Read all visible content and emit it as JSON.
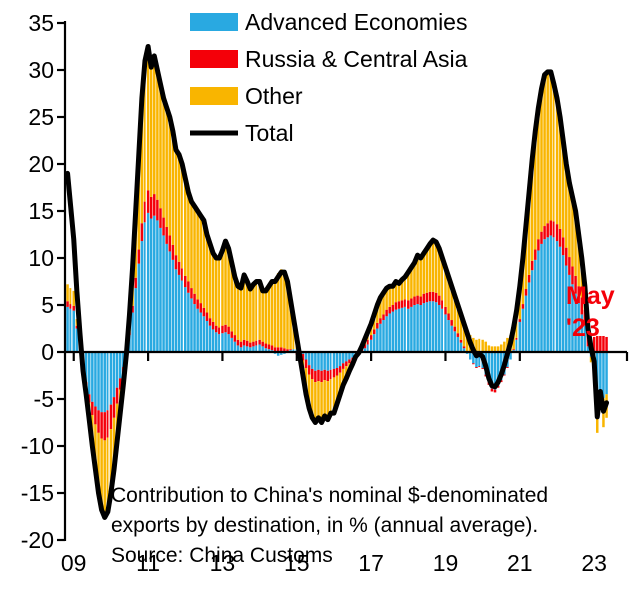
{
  "legend": {
    "position": "top-center",
    "items": [
      "Advanced Economies",
      "Russia & Central Asia",
      "Other",
      "Total"
    ]
  },
  "annotation": {
    "lines": [
      "Contribution to China's nominal $-denominated",
      "exports by destination, in % (annual average).",
      "Source: China Customs"
    ]
  },
  "end_label": {
    "line1": "May",
    "line2": "'23",
    "color": "#f40009"
  },
  "chart_data": {
    "type": "bar",
    "subtype": "stacked-monthly-bars-with-total-line",
    "x_start": "2008-11",
    "x_end": "2023-05",
    "frequency": "monthly",
    "x_tick_labels": [
      "09",
      "11",
      "13",
      "15",
      "17",
      "19",
      "21",
      "23"
    ],
    "x_tick_month_indices": [
      2,
      26,
      50,
      74,
      98,
      122,
      146,
      170
    ],
    "y_ticks": [
      35,
      30,
      25,
      20,
      15,
      10,
      5,
      0,
      -5,
      -10,
      -15,
      -20
    ],
    "ylim": [
      -20,
      35
    ],
    "grid": "none",
    "series": [
      {
        "name": "Advanced Economies",
        "type": "bar",
        "color": "#29a9e1",
        "values": [
          4.8,
          4.6,
          4.4,
          2.5,
          0.8,
          -1.5,
          -3.2,
          -4.5,
          -5.3,
          -5.8,
          -6.2,
          -6.4,
          -6.4,
          -6.2,
          -5.6,
          -4.8,
          -3.8,
          -2.8,
          -1.6,
          -0.3,
          1.8,
          4.2,
          6.8,
          9.4,
          11.8,
          13.8,
          14.8,
          14.2,
          14.5,
          14.0,
          13.2,
          12.4,
          11.5,
          10.7,
          9.8,
          8.8,
          8.2,
          7.6,
          6.9,
          6.3,
          5.7,
          5.1,
          4.6,
          4.2,
          3.8,
          3.3,
          2.8,
          2.4,
          2.1,
          1.9,
          2.0,
          2.1,
          1.9,
          1.5,
          1.1,
          0.7,
          0.5,
          0.7,
          0.6,
          0.5,
          0.6,
          0.7,
          0.8,
          0.6,
          0.4,
          0.3,
          0.2,
          -0.2,
          -0.4,
          -0.3,
          -0.2,
          0.0,
          0.2,
          0.3,
          0.3,
          0.2,
          -0.2,
          -0.8,
          -1.4,
          -1.8,
          -2.0,
          -1.9,
          -2.0,
          -1.9,
          -2.0,
          -1.9,
          -1.8,
          -1.7,
          -1.5,
          -1.2,
          -1.0,
          -0.8,
          -0.6,
          -0.4,
          -0.2,
          0.1,
          0.4,
          0.8,
          1.3,
          1.9,
          2.5,
          3.0,
          3.4,
          3.8,
          4.1,
          4.3,
          4.5,
          4.6,
          4.7,
          4.8,
          4.6,
          4.8,
          5.0,
          5.1,
          5.0,
          5.2,
          5.3,
          5.4,
          5.4,
          5.3,
          5.0,
          4.6,
          4.0,
          3.4,
          2.8,
          2.2,
          1.6,
          1.0,
          0.4,
          -0.2,
          -0.8,
          -1.2,
          -1.6,
          -1.5,
          -1.7,
          -2.4,
          -3.2,
          -3.9,
          -4.0,
          -3.6,
          -3.0,
          -2.4,
          -1.6,
          -0.8,
          0.2,
          1.3,
          3.2,
          4.6,
          6.0,
          7.4,
          8.7,
          9.8,
          10.8,
          11.5,
          12.0,
          12.2,
          12.4,
          12.2,
          11.8,
          11.2,
          10.3,
          9.2,
          8.2,
          7.2,
          6.2,
          5.2,
          4.0,
          2.8,
          0.6,
          -0.5,
          -1.8,
          -5.2,
          -4.4,
          -4.9,
          -4.5
        ]
      },
      {
        "name": "Russia & Central Asia",
        "type": "bar",
        "color": "#f40009",
        "values": [
          0.6,
          0.5,
          0.5,
          0.3,
          0.1,
          -0.2,
          -0.5,
          -0.9,
          -1.4,
          -1.9,
          -2.4,
          -2.8,
          -3.0,
          -2.9,
          -2.6,
          -2.2,
          -1.7,
          -1.2,
          -0.7,
          -0.2,
          0.3,
          0.7,
          1.1,
          1.5,
          1.9,
          2.2,
          2.4,
          2.3,
          2.3,
          2.2,
          2.1,
          1.9,
          1.8,
          1.7,
          1.6,
          1.5,
          1.4,
          1.3,
          1.2,
          1.2,
          1.1,
          1.1,
          1.0,
          1.0,
          0.9,
          0.9,
          0.8,
          0.8,
          0.7,
          0.7,
          0.8,
          0.8,
          0.8,
          0.7,
          0.7,
          0.6,
          0.6,
          0.6,
          0.6,
          0.5,
          0.5,
          0.5,
          0.5,
          0.5,
          0.5,
          0.5,
          0.5,
          0.5,
          0.5,
          0.5,
          0.4,
          0.3,
          0.1,
          -0.1,
          -0.3,
          -0.5,
          -0.7,
          -0.9,
          -1.0,
          -1.1,
          -1.2,
          -1.2,
          -1.2,
          -1.1,
          -1.1,
          -1.0,
          -0.9,
          -0.8,
          -0.7,
          -0.6,
          -0.5,
          -0.4,
          -0.3,
          -0.2,
          -0.1,
          0.3,
          0.4,
          0.5,
          0.5,
          0.5,
          0.6,
          0.6,
          0.6,
          0.7,
          0.7,
          0.7,
          0.8,
          0.8,
          0.8,
          0.8,
          0.9,
          0.9,
          0.9,
          0.9,
          0.9,
          1.0,
          1.0,
          1.0,
          1.0,
          1.0,
          1.0,
          0.9,
          0.8,
          0.7,
          0.6,
          0.5,
          0.4,
          0.3,
          0.2,
          0.1,
          0.0,
          -0.1,
          -0.1,
          -0.1,
          -0.1,
          -0.2,
          -0.3,
          -0.3,
          -0.3,
          -0.2,
          -0.2,
          -0.1,
          -0.1,
          0.0,
          0.1,
          0.2,
          0.3,
          0.5,
          0.7,
          0.8,
          1.0,
          1.1,
          1.2,
          1.3,
          1.4,
          1.5,
          1.6,
          1.7,
          1.8,
          1.9,
          1.9,
          1.9,
          1.9,
          1.9,
          1.9,
          1.8,
          1.8,
          1.7,
          1.7,
          1.6,
          1.6,
          1.7,
          1.7,
          1.7,
          1.6
        ]
      },
      {
        "name": "Other",
        "type": "bar",
        "color": "#f9b500",
        "values": [
          1.8,
          1.7,
          1.6,
          0.7,
          0.1,
          -0.3,
          -0.8,
          -1.8,
          -3.3,
          -4.8,
          -6.4,
          -7.6,
          -8.2,
          -7.9,
          -6.8,
          -5.5,
          -4.0,
          -2.5,
          -1.2,
          0.3,
          1.9,
          4.1,
          7.1,
          10.1,
          13.3,
          15.0,
          15.3,
          13.8,
          14.7,
          13.8,
          13.2,
          12.7,
          12.7,
          12.6,
          12.1,
          11.2,
          11.4,
          11.1,
          10.4,
          9.5,
          9.2,
          9.3,
          9.4,
          9.3,
          9.3,
          8.3,
          7.9,
          7.3,
          7.2,
          7.4,
          8.0,
          8.9,
          8.3,
          7.3,
          6.2,
          5.7,
          5.7,
          6.9,
          6.3,
          5.7,
          6.1,
          6.3,
          6.2,
          5.4,
          5.6,
          6.2,
          6.8,
          7.2,
          7.9,
          8.3,
          8.3,
          7.2,
          5.2,
          3.3,
          1.5,
          -0.2,
          -1.6,
          -2.8,
          -3.6,
          -4.1,
          -4.3,
          -3.9,
          -4.3,
          -3.8,
          -4.1,
          -3.6,
          -3.8,
          -3.0,
          -2.3,
          -1.7,
          -1.3,
          -0.8,
          -0.4,
          0.1,
          0.2,
          0.2,
          0.6,
          0.9,
          1.2,
          1.6,
          1.9,
          2.2,
          2.3,
          2.3,
          2.2,
          2.0,
          2.2,
          1.9,
          2.2,
          2.4,
          3.0,
          3.3,
          3.6,
          4.3,
          4.1,
          4.3,
          4.7,
          5.1,
          5.5,
          5.4,
          5.0,
          4.5,
          4.2,
          3.9,
          3.6,
          3.3,
          3.0,
          2.7,
          2.4,
          2.1,
          1.8,
          1.5,
          1.3,
          1.4,
          1.3,
          1.1,
          0.7,
          0.6,
          0.6,
          0.6,
          0.8,
          1.1,
          1.5,
          1.8,
          2.3,
          3.0,
          3.5,
          4.9,
          6.8,
          8.8,
          10.8,
          12.6,
          14.0,
          15.2,
          16.1,
          16.1,
          15.8,
          14.6,
          13.4,
          11.9,
          10.3,
          8.9,
          7.9,
          7.4,
          6.9,
          5.5,
          4.2,
          2.5,
          0.2,
          -0.6,
          -0.8,
          -3.4,
          -1.5,
          -3.1,
          -2.5
        ]
      },
      {
        "name": "Total",
        "type": "line",
        "color": "#000000",
        "definition": "sum of the three bar series",
        "override_head_values": [
          19.0,
          15.5,
          12.0,
          6.5,
          2.0
        ]
      }
    ]
  }
}
